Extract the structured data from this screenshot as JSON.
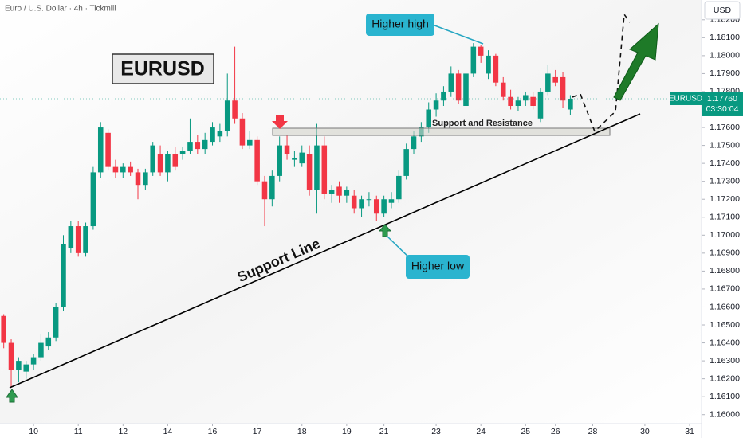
{
  "chart_data": {
    "type": "candlestick",
    "title": "Euro / U.S. Dollar · 4h · Tickmill",
    "currency": "USD",
    "symbol": "EURUSD",
    "last_price": {
      "value": 1.1776,
      "label": "1.17760"
    },
    "countdown": "03:30:04",
    "annotations": {
      "badge": "EURUSD",
      "higher_high": "Higher high",
      "higher_low": "Higher low",
      "support_line": "Support Line",
      "zone": "Support and Resistance"
    },
    "up_color": "#089981",
    "down_color": "#f23645",
    "open": [
      1.1655,
      1.164,
      1.1625,
      1.1624,
      1.1628,
      1.1632,
      1.1638,
      1.1643,
      1.166,
      1.1693,
      1.1705,
      1.169,
      1.1705,
      1.1735,
      1.1757,
      1.1738,
      1.1735,
      1.1738,
      1.1735,
      1.1728,
      1.1735,
      1.1745,
      1.1735,
      1.1745,
      1.1745,
      1.1747,
      1.1752,
      1.1748,
      1.1752,
      1.1755,
      1.1758,
      1.1775,
      1.1765,
      1.175,
      1.1753,
      1.173,
      1.172,
      1.1733,
      1.175,
      1.1742,
      1.174,
      1.1745,
      1.1725,
      1.175,
      1.1723,
      1.1727,
      1.1722,
      1.1722,
      1.1715,
      1.172,
      1.172,
      1.1712,
      1.1718,
      1.172,
      1.1733,
      1.1748,
      1.1755,
      1.176,
      1.177,
      1.1775,
      1.178,
      1.179,
      1.1772,
      1.179,
      1.1805,
      1.179,
      1.18,
      1.1785,
      1.1777,
      1.1772,
      1.1775,
      1.1777,
      1.1765,
      1.178,
      1.1788,
      1.1788,
      1.177
    ],
    "high": [
      1.1656,
      1.1642,
      1.1632,
      1.163,
      1.1634,
      1.1645,
      1.1646,
      1.1662,
      1.17,
      1.1708,
      1.1708,
      1.1707,
      1.1738,
      1.1763,
      1.1759,
      1.1742,
      1.174,
      1.1741,
      1.1737,
      1.1737,
      1.1752,
      1.175,
      1.1747,
      1.1749,
      1.1749,
      1.1765,
      1.1756,
      1.1757,
      1.1763,
      1.1762,
      1.179,
      1.1805,
      1.1768,
      1.1758,
      1.1755,
      1.1733,
      1.1736,
      1.1755,
      1.1756,
      1.1747,
      1.175,
      1.175,
      1.1762,
      1.1755,
      1.1728,
      1.173,
      1.1727,
      1.1725,
      1.1722,
      1.1724,
      1.1722,
      1.1722,
      1.1724,
      1.1736,
      1.1751,
      1.1758,
      1.1763,
      1.1774,
      1.1779,
      1.1783,
      1.1794,
      1.1792,
      1.1793,
      1.1807,
      1.1806,
      1.1803,
      1.1801,
      1.1788,
      1.1781,
      1.1777,
      1.178,
      1.178,
      1.1782,
      1.1795,
      1.1792,
      1.1791,
      1.1778
    ],
    "low": [
      1.1637,
      1.1615,
      1.1618,
      1.162,
      1.1625,
      1.163,
      1.1636,
      1.1641,
      1.1658,
      1.169,
      1.1688,
      1.1688,
      1.1703,
      1.1732,
      1.1736,
      1.1732,
      1.1732,
      1.1733,
      1.172,
      1.1725,
      1.1733,
      1.1733,
      1.173,
      1.1736,
      1.1742,
      1.1745,
      1.1745,
      1.1745,
      1.175,
      1.1752,
      1.1755,
      1.1762,
      1.1748,
      1.1748,
      1.1728,
      1.1705,
      1.1716,
      1.173,
      1.1742,
      1.1738,
      1.1738,
      1.1722,
      1.1712,
      1.172,
      1.1718,
      1.1718,
      1.1718,
      1.1712,
      1.171,
      1.1716,
      1.1708,
      1.171,
      1.1715,
      1.1718,
      1.1731,
      1.1745,
      1.1752,
      1.1757,
      1.1766,
      1.1772,
      1.1777,
      1.1773,
      1.177,
      1.1788,
      1.1796,
      1.1787,
      1.1783,
      1.1775,
      1.177,
      1.1769,
      1.1772,
      1.177,
      1.1763,
      1.1778,
      1.1783,
      1.1771,
      1.1767
    ],
    "close": [
      1.164,
      1.1625,
      1.163,
      1.1628,
      1.1632,
      1.164,
      1.1643,
      1.166,
      1.1695,
      1.1705,
      1.169,
      1.1705,
      1.1735,
      1.176,
      1.1738,
      1.1735,
      1.1738,
      1.1735,
      1.1728,
      1.1735,
      1.175,
      1.1735,
      1.1745,
      1.1738,
      1.1747,
      1.1752,
      1.1748,
      1.1753,
      1.176,
      1.1758,
      1.1775,
      1.1765,
      1.175,
      1.1753,
      1.173,
      1.172,
      1.1733,
      1.175,
      1.1745,
      1.1743,
      1.1746,
      1.1725,
      1.175,
      1.1723,
      1.1725,
      1.1722,
      1.1725,
      1.1715,
      1.172,
      1.172,
      1.1712,
      1.172,
      1.172,
      1.1733,
      1.1748,
      1.1755,
      1.176,
      1.177,
      1.1775,
      1.178,
      1.179,
      1.1775,
      1.179,
      1.1805,
      1.18,
      1.18,
      1.1785,
      1.1777,
      1.1772,
      1.1775,
      1.1778,
      1.1772,
      1.178,
      1.179,
      1.1785,
      1.1775,
      1.1776
    ],
    "xlim": [
      -0.5,
      93.6
    ],
    "xticks": [
      {
        "value": 4,
        "label": "10"
      },
      {
        "value": 10,
        "label": "11"
      },
      {
        "value": 16,
        "label": "12"
      },
      {
        "value": 22,
        "label": "14"
      },
      {
        "value": 28,
        "label": "16"
      },
      {
        "value": 34,
        "label": "17"
      },
      {
        "value": 40,
        "label": "18"
      },
      {
        "value": 46,
        "label": "19"
      },
      {
        "value": 51,
        "label": "21"
      },
      {
        "value": 58,
        "label": "23"
      },
      {
        "value": 64,
        "label": "24"
      },
      {
        "value": 70,
        "label": "25"
      },
      {
        "value": 74,
        "label": "26"
      },
      {
        "value": 79,
        "label": "28"
      },
      {
        "value": 86,
        "label": "30"
      },
      {
        "value": 92,
        "label": "31"
      }
    ],
    "ylim": [
      1.1595,
      1.1831
    ],
    "yticks": [
      {
        "value": 1.16,
        "label": "1.16000"
      },
      {
        "value": 1.161,
        "label": "1.16100"
      },
      {
        "value": 1.162,
        "label": "1.16200"
      },
      {
        "value": 1.163,
        "label": "1.16300"
      },
      {
        "value": 1.164,
        "label": "1.16400"
      },
      {
        "value": 1.165,
        "label": "1.16500"
      },
      {
        "value": 1.166,
        "label": "1.16600"
      },
      {
        "value": 1.167,
        "label": "1.16700"
      },
      {
        "value": 1.168,
        "label": "1.16800"
      },
      {
        "value": 1.169,
        "label": "1.16900"
      },
      {
        "value": 1.17,
        "label": "1.17000"
      },
      {
        "value": 1.171,
        "label": "1.17100"
      },
      {
        "value": 1.172,
        "label": "1.17200"
      },
      {
        "value": 1.173,
        "label": "1.17300"
      },
      {
        "value": 1.174,
        "label": "1.17400"
      },
      {
        "value": 1.175,
        "label": "1.17500"
      },
      {
        "value": 1.176,
        "label": "1.17600"
      },
      {
        "value": 1.177,
        "label": "1.17700"
      },
      {
        "value": 1.178,
        "label": "1.17800"
      },
      {
        "value": 1.179,
        "label": "1.17900"
      },
      {
        "value": 1.18,
        "label": "1.18000"
      },
      {
        "value": 1.181,
        "label": "1.18100"
      },
      {
        "value": 1.182,
        "label": "1.18200"
      }
    ]
  }
}
